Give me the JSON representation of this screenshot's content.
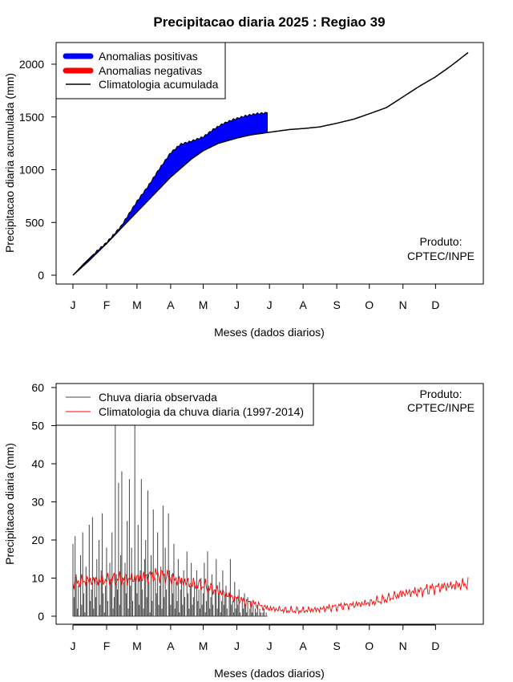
{
  "title": "Precipitacao diaria 2025 : Regiao 39",
  "credit": [
    "Produto:",
    "CPTEC/INPE"
  ],
  "colors": {
    "positive": "#0000ff",
    "negative": "#ff0000",
    "climatology_line": "#000000",
    "observed_bars": "#444444",
    "climatology_daily": "#ff0000"
  },
  "chart_data": [
    {
      "type": "area",
      "xlabel": "Meses (dados diarios)",
      "ylabel": "Precipitacao diaria acumulada (mm)",
      "x_unit": "day of year",
      "xlim": [
        1,
        365
      ],
      "ylim": [
        0,
        2100
      ],
      "yticks": [
        0,
        500,
        1000,
        1500,
        2000
      ],
      "month_ticks": {
        "days": [
          1,
          32,
          60,
          91,
          121,
          152,
          182,
          213,
          244,
          274,
          305,
          335
        ],
        "labels": [
          "J",
          "F",
          "M",
          "A",
          "M",
          "J",
          "J",
          "A",
          "S",
          "O",
          "N",
          "D"
        ]
      },
      "legend": {
        "position": "top-left",
        "entries": [
          "Anomalias positivas",
          "Anomalias negativas",
          "Climatologia acumulada"
        ]
      },
      "climatology_cumulative": {
        "x": [
          1,
          15,
          32,
          45,
          60,
          75,
          91,
          110,
          121,
          135,
          152,
          165,
          182,
          200,
          213,
          228,
          244,
          260,
          274,
          290,
          305,
          320,
          335,
          350,
          365
        ],
        "y": [
          0,
          130,
          300,
          440,
          600,
          760,
          930,
          1100,
          1180,
          1250,
          1300,
          1330,
          1355,
          1380,
          1390,
          1405,
          1440,
          1480,
          1530,
          1590,
          1690,
          1790,
          1880,
          1990,
          2110
        ]
      },
      "observed_cumulative": {
        "x": [
          1,
          10,
          20,
          32,
          45,
          55,
          60,
          70,
          80,
          91,
          100,
          110,
          121,
          130,
          140,
          150,
          160,
          170,
          180
        ],
        "y": [
          0,
          100,
          200,
          310,
          460,
          620,
          700,
          840,
          1000,
          1160,
          1240,
          1270,
          1310,
          1380,
          1440,
          1480,
          1510,
          1530,
          1540
        ]
      }
    },
    {
      "type": "bar",
      "xlabel": "Meses (dados diarios)",
      "ylabel": "Precipitacao diaria (mm)",
      "x_unit": "day of year",
      "xlim": [
        1,
        365
      ],
      "ylim": [
        0,
        60
      ],
      "yticks": [
        0,
        10,
        20,
        30,
        40,
        50,
        60
      ],
      "month_ticks": {
        "days": [
          1,
          32,
          60,
          91,
          121,
          152,
          182,
          213,
          244,
          274,
          305,
          335
        ],
        "labels": [
          "J",
          "F",
          "M",
          "A",
          "M",
          "J",
          "J",
          "A",
          "S",
          "O",
          "N",
          "D"
        ]
      },
      "legend": {
        "position": "top-left",
        "entries": [
          "Chuva diaria observada",
          "Climatologia da chuva diaria (1997-2014)"
        ]
      },
      "observed_days": [
        1,
        2,
        3,
        4,
        5,
        6,
        7,
        8,
        9,
        10,
        11,
        12,
        13,
        14,
        15,
        16,
        17,
        18,
        19,
        20,
        21,
        22,
        23,
        24,
        25,
        26,
        27,
        28,
        29,
        30,
        31,
        32,
        33,
        34,
        35,
        36,
        37,
        38,
        39,
        40,
        41,
        42,
        43,
        44,
        45,
        46,
        47,
        48,
        49,
        50,
        51,
        52,
        53,
        54,
        55,
        56,
        57,
        58,
        59,
        60,
        61,
        62,
        63,
        64,
        65,
        66,
        67,
        68,
        69,
        70,
        71,
        72,
        73,
        74,
        75,
        76,
        77,
        78,
        79,
        80,
        81,
        82,
        83,
        84,
        85,
        86,
        87,
        88,
        89,
        90,
        91,
        92,
        93,
        94,
        95,
        96,
        97,
        98,
        99,
        100,
        101,
        102,
        103,
        104,
        105,
        106,
        107,
        108,
        109,
        110,
        111,
        112,
        113,
        114,
        115,
        116,
        117,
        118,
        119,
        120,
        121,
        122,
        123,
        124,
        125,
        126,
        127,
        128,
        129,
        130,
        131,
        132,
        133,
        134,
        135,
        136,
        137,
        138,
        139,
        140,
        141,
        142,
        143,
        144,
        145,
        146,
        147,
        148,
        149,
        150,
        151,
        152,
        153,
        154,
        155,
        156,
        157,
        158,
        159,
        160,
        161,
        162,
        163,
        164,
        165,
        166,
        167,
        168,
        169,
        170,
        171,
        172,
        173,
        174,
        175,
        176,
        177,
        178,
        179,
        180
      ],
      "observed_values": [
        19,
        5,
        21,
        11,
        2,
        8,
        0,
        16,
        3,
        22,
        6,
        1,
        13,
        9,
        0,
        24,
        4,
        7,
        26,
        2,
        10,
        5,
        15,
        0,
        20,
        3,
        12,
        27,
        6,
        1,
        8,
        18,
        4,
        0,
        14,
        9,
        22,
        2,
        5,
        53,
        11,
        7,
        35,
        3,
        16,
        38,
        0,
        9,
        14,
        6,
        25,
        2,
        36,
        8,
        18,
        4,
        0,
        55,
        10,
        6,
        24,
        3,
        12,
        36,
        7,
        2,
        15,
        20,
        5,
        33,
        9,
        1,
        16,
        4,
        28,
        0,
        10,
        6,
        22,
        3,
        8,
        13,
        2,
        29,
        5,
        18,
        7,
        0,
        27,
        12,
        3,
        11,
        6,
        19,
        2,
        9,
        4,
        15,
        1,
        7,
        10,
        3,
        12,
        5,
        0,
        17,
        6,
        2,
        8,
        14,
        3,
        5,
        9,
        0,
        12,
        4,
        7,
        2,
        10,
        3,
        6,
        14,
        1,
        4,
        17,
        8,
        2,
        5,
        11,
        3,
        0,
        7,
        15,
        2,
        6,
        9,
        1,
        4,
        12,
        3,
        5,
        8,
        2,
        0,
        6,
        15,
        3,
        4,
        1,
        9,
        2,
        5,
        3,
        7,
        1,
        0,
        4,
        2,
        6,
        3,
        1,
        5,
        0,
        2,
        4,
        1,
        3,
        0,
        2,
        1,
        3,
        0,
        2,
        1,
        0,
        1,
        2,
        0,
        1,
        0
      ],
      "climatology_note": "noisy daily line ~8-11 mm Jan-Apr, declining to ~1-3 mm Jun-Sep, rising to ~7-9 mm Nov-Dec",
      "climatology_anchor_days": [
        1,
        32,
        60,
        80,
        91,
        110,
        121,
        140,
        152,
        170,
        182,
        200,
        213,
        228,
        244,
        260,
        274,
        290,
        305,
        320,
        335,
        350,
        365
      ],
      "climatology_anchor_values": [
        9,
        9.5,
        10,
        11,
        10,
        8.5,
        8,
        6,
        4.5,
        3,
        2,
        1.5,
        1.5,
        1.8,
        2.5,
        3,
        3.5,
        4.5,
        6,
        6.5,
        7.5,
        8,
        8.5
      ]
    }
  ]
}
